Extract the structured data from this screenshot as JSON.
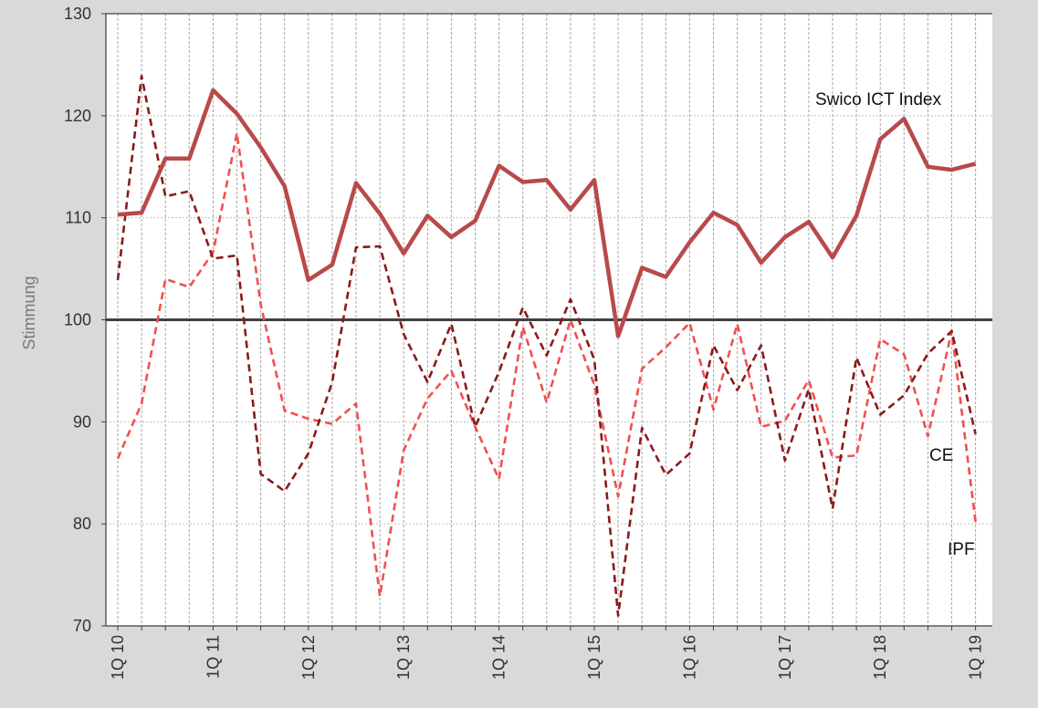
{
  "chart_data": {
    "type": "line",
    "title": "",
    "xlabel": "",
    "ylabel": "Stimmung",
    "ylim": [
      70,
      130
    ],
    "yticks": [
      70,
      80,
      90,
      100,
      110,
      120,
      130
    ],
    "reference_line": 100,
    "grid": true,
    "x_count": 37,
    "x_tick_labels": [
      {
        "index": 0,
        "label": "1Q 10"
      },
      {
        "index": 4,
        "label": "1Q 11"
      },
      {
        "index": 8,
        "label": "1Q 12"
      },
      {
        "index": 12,
        "label": "1Q 13"
      },
      {
        "index": 16,
        "label": "1Q 14"
      },
      {
        "index": 20,
        "label": "1Q 15"
      },
      {
        "index": 24,
        "label": "1Q 16"
      },
      {
        "index": 28,
        "label": "1Q 17"
      },
      {
        "index": 32,
        "label": "1Q 18"
      },
      {
        "index": 36,
        "label": "1Q 19"
      }
    ],
    "series": [
      {
        "name": "Swico ICT Index",
        "color": "#b84a4a",
        "style": "solid",
        "values": [
          110.3,
          110.5,
          115.8,
          115.8,
          122.5,
          120.2,
          116.9,
          113.1,
          103.9,
          105.4,
          113.4,
          110.4,
          106.5,
          110.2,
          108.1,
          109.7,
          115.1,
          113.5,
          113.7,
          110.8,
          113.7,
          98.4,
          105.1,
          104.2,
          107.6,
          110.5,
          109.3,
          105.6,
          108.1,
          109.6,
          106.1,
          110.2,
          117.7,
          119.7,
          115.0,
          114.7,
          115.3
        ]
      },
      {
        "name": "CE",
        "color": "#8b1a1a",
        "style": "dashed",
        "values": [
          103.9,
          123.9,
          112.1,
          112.6,
          106.0,
          106.3,
          84.9,
          83.2,
          86.9,
          93.9,
          107.1,
          107.2,
          98.6,
          93.9,
          99.6,
          89.5,
          94.9,
          101.2,
          96.5,
          102.0,
          96.1,
          71.0,
          89.4,
          84.8,
          86.9,
          97.5,
          93.1,
          97.5,
          86.2,
          93.2,
          81.5,
          96.3,
          90.7,
          92.6,
          96.7,
          98.9,
          88.8
        ]
      },
      {
        "name": "IPF",
        "color": "#f05050",
        "style": "dashed",
        "values": [
          86.4,
          91.8,
          104.0,
          103.2,
          106.6,
          118.3,
          101.5,
          91.1,
          90.3,
          89.8,
          91.8,
          72.9,
          87.2,
          92.3,
          95.0,
          89.5,
          84.4,
          99.3,
          91.9,
          100.0,
          93.6,
          82.7,
          95.2,
          97.3,
          99.7,
          91.2,
          99.6,
          89.5,
          90.1,
          94.1,
          86.5,
          86.7,
          98.1,
          96.6,
          88.6,
          98.9,
          80.2
        ]
      }
    ],
    "annotations": [
      {
        "text": "Swico ICT Index",
        "series": "Swico ICT Index"
      },
      {
        "text": "CE",
        "series": "CE"
      },
      {
        "text": "IPF",
        "series": "IPF"
      }
    ]
  }
}
